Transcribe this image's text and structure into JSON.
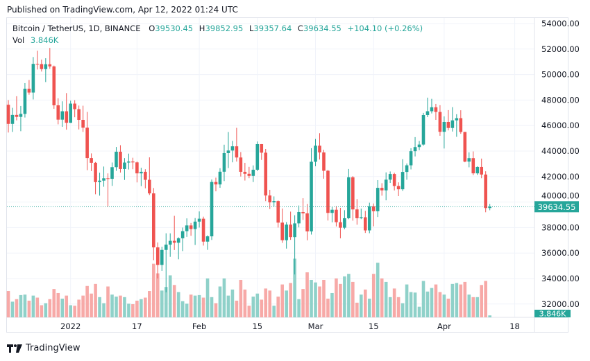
{
  "published": "Published on TradingView.com, Apr 12, 2022 01:24 UTC",
  "legend": {
    "symbol": "Bitcoin / TetherUS, 1D, BINANCE",
    "open_label": "O",
    "open": "39530.45",
    "high_label": "H",
    "high": "39852.95",
    "low_label": "L",
    "low": "39357.64",
    "close_label": "C",
    "close": "39634.55",
    "change": "+104.10 (+0.26%)",
    "vol_label": "Vol",
    "vol": "3.846K"
  },
  "price_tag": "39634.55",
  "volume_tag": "3.846K",
  "logo_text": "TradingView",
  "colors": {
    "up": "#26a69a",
    "down": "#ef5350",
    "up_vol": "#8fd1c9",
    "down_vol": "#f7a9a7",
    "grid": "#f0f3fa"
  },
  "chart_data": {
    "type": "candlestick",
    "y_ticks": [
      "54000.00",
      "52000.00",
      "50000.00",
      "48000.00",
      "46000.00",
      "44000.00",
      "42000.00",
      "40000.00",
      "38000.00",
      "36000.00",
      "34000.00",
      "32000.00"
    ],
    "ylim": [
      32000,
      54000
    ],
    "x_ticks": [
      {
        "label": "2022",
        "date": "2022-01-01"
      },
      {
        "label": "17",
        "date": "2022-01-17"
      },
      {
        "label": "Feb",
        "date": "2022-02-01"
      },
      {
        "label": "15",
        "date": "2022-02-15"
      },
      {
        "label": "Mar",
        "date": "2022-03-01"
      },
      {
        "label": "15",
        "date": "2022-03-15"
      },
      {
        "label": "Apr",
        "date": "2022-04-01"
      },
      {
        "label": "18",
        "date": "2022-04-18"
      }
    ],
    "start_date": "2021-12-17",
    "volume_unit": "K",
    "candles_ohlcv": [
      [
        47632,
        47995,
        45456,
        46131,
        52
      ],
      [
        46131,
        47392,
        45500,
        46834,
        31
      ],
      [
        46834,
        48300,
        46406,
        46681,
        36
      ],
      [
        46681,
        47537,
        45558,
        46914,
        44
      ],
      [
        46914,
        49328,
        46630,
        48890,
        45
      ],
      [
        48890,
        49576,
        48421,
        48589,
        33
      ],
      [
        48589,
        51375,
        48050,
        50838,
        43
      ],
      [
        50838,
        51868,
        50395,
        50821,
        39
      ],
      [
        50821,
        51176,
        50236,
        50429,
        24
      ],
      [
        50429,
        51280,
        49412,
        50809,
        28
      ],
      [
        50809,
        52088,
        50450,
        50640,
        36
      ],
      [
        50640,
        50704,
        47313,
        47588,
        56
      ],
      [
        47588,
        48139,
        46096,
        46464,
        48
      ],
      [
        46464,
        47900,
        45900,
        47120,
        37
      ],
      [
        47120,
        48548,
        45678,
        46216,
        43
      ],
      [
        46216,
        47954,
        46208,
        47722,
        24
      ],
      [
        47722,
        47990,
        46654,
        47286,
        23
      ],
      [
        47286,
        47570,
        45696,
        46446,
        35
      ],
      [
        46446,
        47557,
        45500,
        45832,
        43
      ],
      [
        45832,
        47070,
        42500,
        43451,
        62
      ],
      [
        43451,
        43816,
        42430,
        43082,
        47
      ],
      [
        43082,
        43145,
        40610,
        41566,
        66
      ],
      [
        41566,
        42300,
        40501,
        41680,
        40
      ],
      [
        41680,
        42786,
        41200,
        41864,
        28
      ],
      [
        41864,
        42248,
        39650,
        41822,
        61
      ],
      [
        41822,
        43100,
        41268,
        42735,
        45
      ],
      [
        42735,
        44322,
        42450,
        43949,
        41
      ],
      [
        43949,
        44459,
        42311,
        42591,
        43
      ],
      [
        42591,
        43447,
        41733,
        43099,
        40
      ],
      [
        43099,
        43800,
        42555,
        43177,
        27
      ],
      [
        43177,
        43476,
        42577,
        43113,
        26
      ],
      [
        43113,
        43179,
        41540,
        42250,
        33
      ],
      [
        42250,
        42691,
        41250,
        42375,
        36
      ],
      [
        42375,
        42575,
        41077,
        41744,
        39
      ],
      [
        41744,
        43505,
        40554,
        40680,
        52
      ],
      [
        40680,
        41100,
        35440,
        36445,
        106
      ],
      [
        36445,
        36835,
        34008,
        35071,
        87
      ],
      [
        35071,
        36499,
        34601,
        36244,
        53
      ],
      [
        36244,
        37550,
        32917,
        36660,
        60
      ],
      [
        36660,
        37545,
        35701,
        36958,
        83
      ],
      [
        36958,
        38919,
        36234,
        36809,
        64
      ],
      [
        36809,
        37234,
        35507,
        37160,
        50
      ],
      [
        37160,
        38000,
        36155,
        37716,
        32
      ],
      [
        37716,
        38720,
        37268,
        38166,
        27
      ],
      [
        38166,
        38359,
        37351,
        37881,
        45
      ],
      [
        37881,
        38744,
        36632,
        38466,
        43
      ],
      [
        38466,
        39265,
        38000,
        38694,
        44
      ],
      [
        38694,
        38855,
        36586,
        36896,
        39
      ],
      [
        36896,
        37387,
        36250,
        37311,
        77
      ],
      [
        37311,
        41772,
        37026,
        41574,
        40
      ],
      [
        41574,
        41913,
        40843,
        41382,
        28
      ],
      [
        41382,
        42656,
        41116,
        42380,
        61
      ],
      [
        42380,
        44500,
        41645,
        43839,
        77
      ],
      [
        43839,
        45492,
        42666,
        44042,
        43
      ],
      [
        44042,
        44799,
        43117,
        44372,
        55
      ],
      [
        44372,
        45821,
        43174,
        43495,
        33
      ],
      [
        43495,
        43920,
        42002,
        42373,
        74
      ],
      [
        42373,
        43079,
        41688,
        42217,
        55
      ],
      [
        42217,
        42760,
        41870,
        42053,
        23
      ],
      [
        42053,
        42876,
        41570,
        42535,
        41
      ],
      [
        42535,
        44751,
        42428,
        44544,
        47
      ],
      [
        44544,
        44549,
        43307,
        43873,
        35
      ],
      [
        43873,
        44164,
        40073,
        40515,
        57
      ],
      [
        40515,
        40959,
        39450,
        39974,
        53
      ],
      [
        39974,
        40444,
        39639,
        40079,
        23
      ],
      [
        40079,
        40125,
        38000,
        38386,
        41
      ],
      [
        38386,
        39494,
        36800,
        37008,
        65
      ],
      [
        37008,
        38429,
        36350,
        38230,
        53
      ],
      [
        38230,
        39249,
        37036,
        37250,
        68
      ],
      [
        37250,
        38968,
        34322,
        38327,
        116
      ],
      [
        38327,
        39728,
        38014,
        39219,
        36
      ],
      [
        39219,
        40300,
        38600,
        39116,
        56
      ],
      [
        39116,
        39855,
        37000,
        37699,
        89
      ],
      [
        37699,
        44225,
        37450,
        43160,
        74
      ],
      [
        43160,
        44949,
        42809,
        44421,
        69
      ],
      [
        44421,
        45400,
        43334,
        43892,
        61
      ],
      [
        43892,
        44101,
        41832,
        42454,
        74
      ],
      [
        42454,
        42527,
        38550,
        39148,
        37
      ],
      [
        39148,
        39613,
        38407,
        39397,
        48
      ],
      [
        39397,
        39693,
        38088,
        38420,
        77
      ],
      [
        38420,
        39547,
        37155,
        37988,
        66
      ],
      [
        37988,
        39362,
        37867,
        38730,
        81
      ],
      [
        38730,
        42594,
        38656,
        41941,
        86
      ],
      [
        41941,
        42039,
        38539,
        39422,
        70
      ],
      [
        39422,
        40236,
        38223,
        38729,
        29
      ],
      [
        38729,
        39486,
        38660,
        38807,
        45
      ],
      [
        38807,
        39310,
        37578,
        37777,
        55
      ],
      [
        37777,
        39947,
        37555,
        39671,
        37
      ],
      [
        39671,
        39887,
        38098,
        39280,
        86
      ],
      [
        39280,
        41718,
        38828,
        41114,
        108
      ],
      [
        41114,
        41478,
        40500,
        40917,
        77
      ],
      [
        40917,
        42325,
        40135,
        41757,
        70
      ],
      [
        41757,
        42400,
        41499,
        42201,
        40
      ],
      [
        42201,
        42296,
        40911,
        41262,
        57
      ],
      [
        41262,
        41544,
        40467,
        41002,
        40
      ],
      [
        41002,
        43361,
        40875,
        42364,
        28
      ],
      [
        42364,
        43025,
        41751,
        42882,
        65
      ],
      [
        42882,
        44220,
        42560,
        43991,
        50
      ],
      [
        43991,
        45094,
        43579,
        44313,
        49
      ],
      [
        44313,
        44792,
        44072,
        44511,
        21
      ],
      [
        44511,
        46999,
        44422,
        46827,
        72
      ],
      [
        46827,
        48189,
        46663,
        47122,
        51
      ],
      [
        47122,
        48096,
        46950,
        47434,
        58
      ],
      [
        47434,
        47700,
        46445,
        47067,
        65
      ],
      [
        47067,
        47600,
        45200,
        45510,
        50
      ],
      [
        45510,
        46720,
        44200,
        46283,
        45
      ],
      [
        46283,
        47213,
        45620,
        45811,
        37
      ],
      [
        45811,
        47444,
        45530,
        46407,
        66
      ],
      [
        46407,
        46890,
        45118,
        46580,
        68
      ],
      [
        46580,
        47200,
        45353,
        45497,
        65
      ],
      [
        45497,
        45507,
        43121,
        43170,
        70
      ],
      [
        43170,
        43900,
        42727,
        43444,
        45
      ],
      [
        43444,
        43970,
        42107,
        42252,
        40
      ],
      [
        42252,
        42800,
        42125,
        42753,
        40
      ],
      [
        42753,
        43410,
        41868,
        42158,
        64
      ],
      [
        42158,
        42414,
        39200,
        39530,
        72
      ],
      [
        39530.45,
        39852.95,
        39357.64,
        39634.55,
        3.846
      ]
    ]
  }
}
